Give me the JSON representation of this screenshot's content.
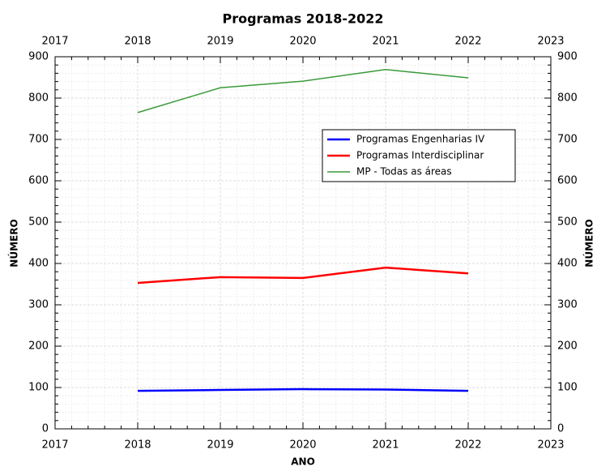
{
  "chart_data": {
    "type": "line",
    "title": "Programas 2018-2022",
    "x_label": "ANO",
    "y_label": "NÚMERO",
    "x": [
      2018,
      2019,
      2020,
      2021,
      2022
    ],
    "series": [
      {
        "name": "Programas Engenharias IV",
        "color": "#0000ff",
        "values": [
          92,
          94,
          96,
          95,
          92
        ]
      },
      {
        "name": "Programas Interdisciplinar",
        "color": "#ff0000",
        "values": [
          353,
          367,
          365,
          390,
          376
        ]
      },
      {
        "name": "MP - Todas as áreas",
        "color": "#3a9a3a",
        "values": [
          765,
          825,
          841,
          869,
          849
        ]
      }
    ],
    "xlim": [
      2017,
      2023
    ],
    "xticks": [
      2017,
      2018,
      2019,
      2020,
      2021,
      2022,
      2023
    ],
    "ylim": [
      0,
      900
    ],
    "yticks": [
      0,
      100,
      200,
      300,
      400,
      500,
      600,
      700,
      800,
      900
    ],
    "grid": true,
    "legend": "upper right"
  }
}
